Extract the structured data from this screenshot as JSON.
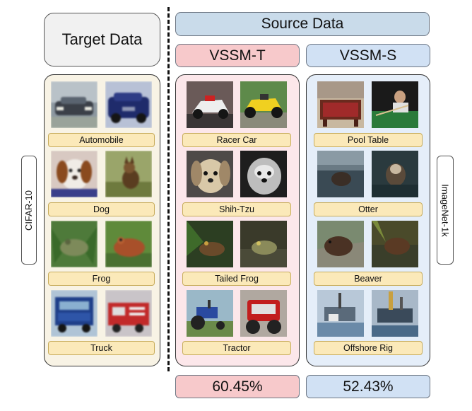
{
  "headers": {
    "target": "Target Data",
    "source": "Source Data",
    "vssm_t": "VSSM-T",
    "vssm_s": "VSSM-S"
  },
  "side_labels": {
    "left": "CIFAR-10",
    "right": "ImageNet-1k"
  },
  "target_column": {
    "labels": [
      "Automobile",
      "Dog",
      "Frog",
      "Truck"
    ]
  },
  "vssm_t_column": {
    "labels": [
      "Racer Car",
      "Shih-Tzu",
      "Tailed Frog",
      "Tractor"
    ]
  },
  "vssm_s_column": {
    "labels": [
      "Pool Table",
      "Otter",
      "Beaver",
      "Offshore Rig"
    ]
  },
  "accuracy": {
    "vssm_t": "60.45%",
    "vssm_s": "52.43%"
  },
  "colors": {
    "target_panel": "#f8f3e5",
    "vssm_t_panel": "#fce7ea",
    "vssm_s_panel": "#e5eef9",
    "label_fill": "#fbe9b9",
    "vssm_t_accent": "#f7c9cb",
    "vssm_s_accent": "#d1e1f4"
  }
}
